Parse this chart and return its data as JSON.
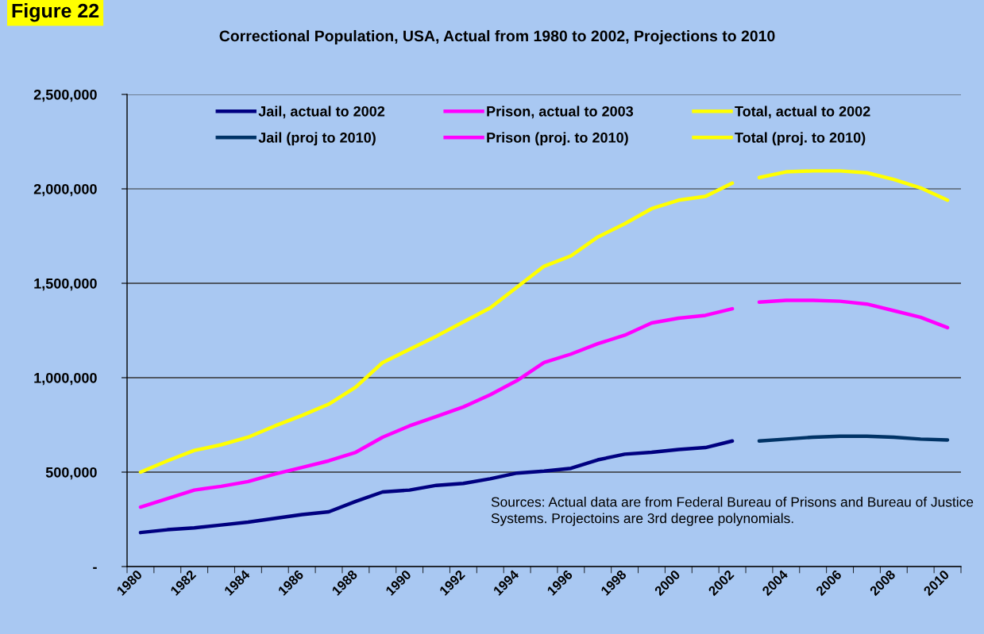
{
  "chart_data": {
    "type": "line",
    "title": "Correctional Population, USA, Actual from 1980 to 2002, Projections to 2010",
    "annotations": [
      "Figure 22",
      "Sources: Actual data are from Federal Bureau of Prisons and Bureau of Justice Systems. Projectoins are 3rd degree polynomials."
    ],
    "categories": [
      "1980",
      null,
      "1982",
      null,
      "1984",
      null,
      "1986",
      null,
      "1988",
      null,
      "1990",
      null,
      "1992",
      null,
      "1994",
      null,
      "1996",
      null,
      "1998",
      null,
      "2000",
      null,
      "2002",
      null,
      "2004",
      null,
      "2006",
      null,
      "2008",
      null,
      "2010"
    ],
    "series": [
      {
        "name": "Jail, actual to 2002",
        "color": "#000080",
        "values": [
          180000,
          195000,
          205000,
          220000,
          235000,
          255000,
          275000,
          290000,
          345000,
          395000,
          405000,
          430000,
          440000,
          465000,
          495000,
          505000,
          520000,
          565000,
          595000,
          605000,
          620000,
          630000,
          665000,
          null,
          null,
          null,
          null,
          null,
          null,
          null,
          null
        ]
      },
      {
        "name": "Jail (proj to 2010)",
        "color": "#003366",
        "values": [
          null,
          null,
          null,
          null,
          null,
          null,
          null,
          null,
          null,
          null,
          null,
          null,
          null,
          null,
          null,
          null,
          null,
          null,
          null,
          null,
          null,
          null,
          null,
          665000,
          675000,
          685000,
          690000,
          690000,
          685000,
          675000,
          670000
        ]
      },
      {
        "name": "Prison, actual to 2003",
        "color": "#ff00ff",
        "values": [
          315000,
          360000,
          405000,
          425000,
          450000,
          490000,
          525000,
          560000,
          605000,
          685000,
          745000,
          795000,
          845000,
          910000,
          985000,
          1080000,
          1125000,
          1180000,
          1225000,
          1290000,
          1315000,
          1330000,
          1365000,
          null,
          null,
          null,
          null,
          null,
          null,
          null,
          null
        ]
      },
      {
        "name": "Prison (proj. to 2010)",
        "color": "#ff00ff",
        "values": [
          null,
          null,
          null,
          null,
          null,
          null,
          null,
          null,
          null,
          null,
          null,
          null,
          null,
          null,
          null,
          null,
          null,
          null,
          null,
          null,
          null,
          null,
          null,
          1400000,
          1410000,
          1410000,
          1405000,
          1390000,
          1355000,
          1320000,
          1265000
        ]
      },
      {
        "name": "Total, actual to 2002",
        "color": "#ffff00",
        "values": [
          500000,
          560000,
          615000,
          645000,
          685000,
          745000,
          800000,
          860000,
          950000,
          1080000,
          1150000,
          1220000,
          1295000,
          1370000,
          1480000,
          1590000,
          1645000,
          1745000,
          1815000,
          1895000,
          1940000,
          1960000,
          2030000,
          null,
          null,
          null,
          null,
          null,
          null,
          null,
          null
        ]
      },
      {
        "name": "Total (proj. to 2010)",
        "color": "#ffff00",
        "values": [
          null,
          null,
          null,
          null,
          null,
          null,
          null,
          null,
          null,
          null,
          null,
          null,
          null,
          null,
          null,
          null,
          null,
          null,
          null,
          null,
          null,
          null,
          null,
          2060000,
          2090000,
          2095000,
          2095000,
          2085000,
          2050000,
          2005000,
          1940000
        ]
      }
    ],
    "ylim": [
      0,
      2500000
    ],
    "yticks": [
      {
        "value": 0,
        "label": "-"
      },
      {
        "value": 500000,
        "label": "500,000"
      },
      {
        "value": 1000000,
        "label": "1,000,000"
      },
      {
        "value": 1500000,
        "label": "1,500,000"
      },
      {
        "value": 2000000,
        "label": "2,000,000"
      },
      {
        "value": 2500000,
        "label": "2,500,000"
      }
    ],
    "grid": "y",
    "legend": "top",
    "line_style": "solid"
  }
}
